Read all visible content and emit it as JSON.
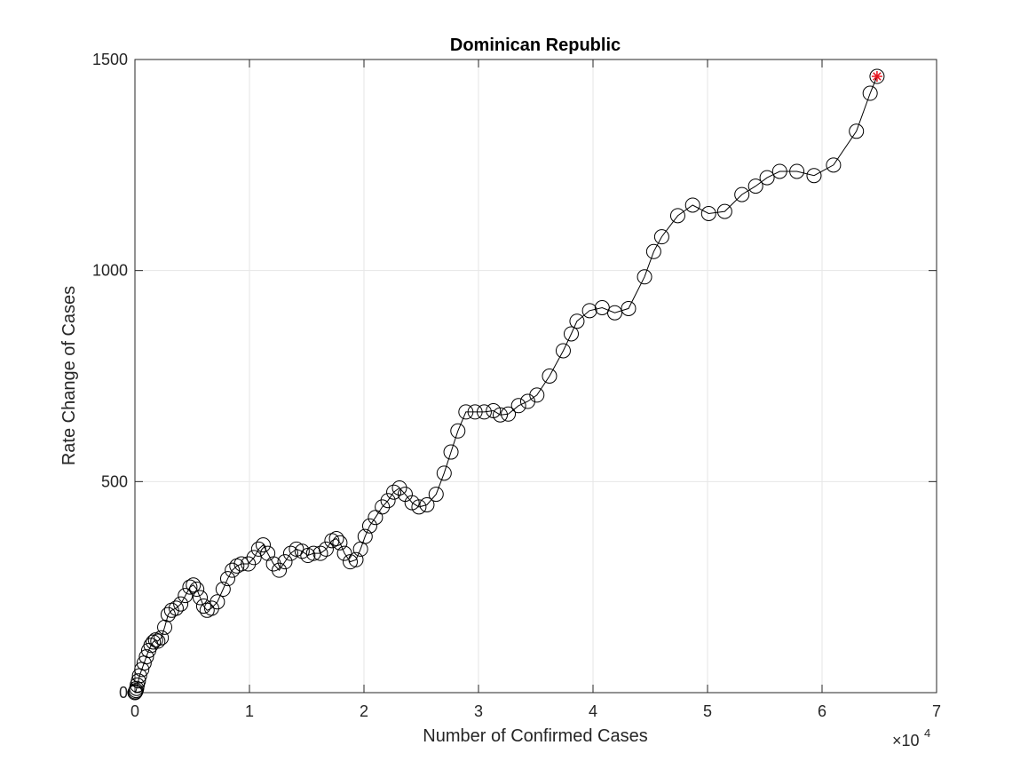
{
  "chart_data": {
    "type": "line",
    "title": "Dominican Republic",
    "xlabel": "Number of Confirmed Cases",
    "ylabel": "Rate Change of Cases",
    "x_multiplier_label": "×10",
    "x_multiplier_exponent": "4",
    "xlim": [
      0,
      70000
    ],
    "ylim": [
      0,
      1500
    ],
    "x_ticks": [
      0,
      10000,
      20000,
      30000,
      40000,
      50000,
      60000,
      70000
    ],
    "x_tick_labels": [
      "0",
      "1",
      "2",
      "3",
      "4",
      "5",
      "6",
      "7"
    ],
    "y_ticks": [
      0,
      500,
      1000,
      1500
    ],
    "y_tick_labels": [
      "0",
      "500",
      "1000",
      "1500"
    ],
    "grid": true,
    "marker": "open-circle",
    "line_color": "#000000",
    "highlight_color": "#e8141e",
    "series": [
      {
        "x": [
          0,
          50,
          100,
          150,
          200,
          300,
          400,
          600,
          800,
          1000,
          1200,
          1400,
          1600,
          1800,
          2000,
          2300,
          2600,
          2900,
          3200,
          3600,
          4000,
          4400,
          4800,
          5100,
          5400,
          5700,
          6000,
          6300,
          6700,
          7200,
          7700,
          8100,
          8500,
          8900,
          9300,
          9900,
          10400,
          10800,
          11200,
          11600,
          12100,
          12600,
          13100,
          13600,
          14100,
          14600,
          15100,
          15600,
          16200,
          16700,
          17200,
          17600,
          17900,
          18300,
          18800,
          19300,
          19700,
          20100,
          20500,
          21000,
          21600,
          22100,
          22600,
          23100,
          23600,
          24200,
          24800,
          25500,
          26300,
          27000,
          27600,
          28200,
          28900,
          29700,
          30500,
          31300,
          31900,
          32600,
          33500,
          34300,
          35100,
          36200,
          37400,
          38100,
          38600,
          39700,
          40800,
          41900,
          43100,
          44500,
          45300,
          46000,
          47400,
          48700,
          50100,
          51500,
          53000,
          54200,
          55200,
          56300,
          57800,
          59300,
          61000,
          63000,
          64200,
          64800
        ],
        "y": [
          0,
          2,
          5,
          10,
          18,
          28,
          40,
          55,
          70,
          85,
          100,
          112,
          120,
          125,
          122,
          130,
          155,
          185,
          195,
          200,
          210,
          230,
          250,
          255,
          245,
          225,
          205,
          195,
          200,
          215,
          245,
          270,
          290,
          300,
          305,
          305,
          320,
          340,
          350,
          330,
          305,
          290,
          310,
          330,
          340,
          335,
          325,
          330,
          330,
          340,
          360,
          365,
          355,
          330,
          310,
          315,
          340,
          370,
          395,
          415,
          440,
          455,
          475,
          485,
          470,
          450,
          440,
          445,
          470,
          520,
          570,
          620,
          665,
          665,
          665,
          668,
          658,
          660,
          680,
          690,
          705,
          750,
          810,
          850,
          880,
          905,
          912,
          900,
          910,
          985,
          1045,
          1080,
          1130,
          1155,
          1135,
          1140,
          1180,
          1200,
          1220,
          1235,
          1235,
          1225,
          1250,
          1330,
          1420,
          1460
        ]
      }
    ]
  }
}
